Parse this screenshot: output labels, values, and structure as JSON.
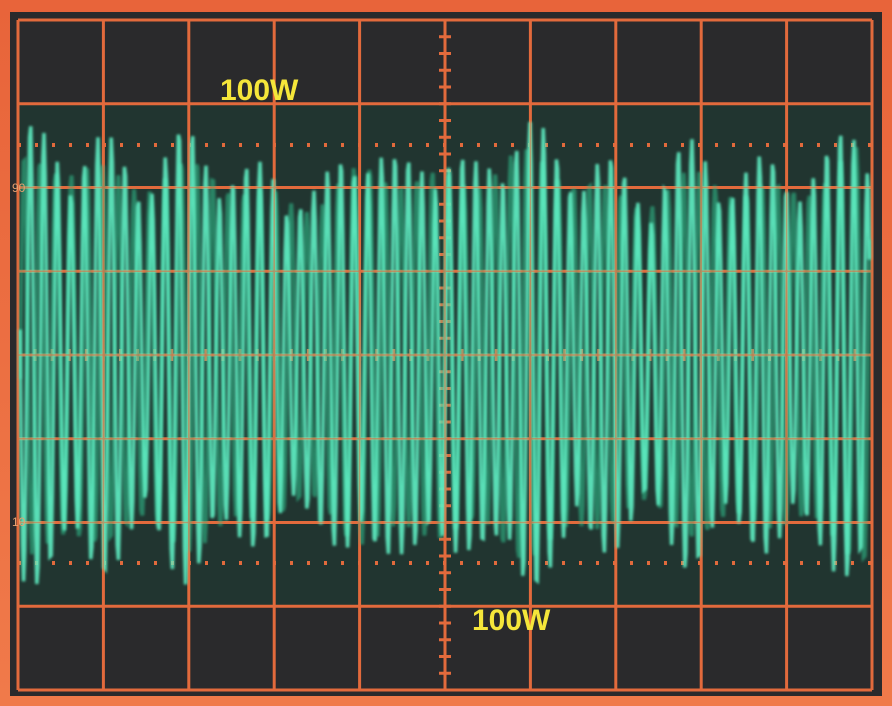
{
  "labels": {
    "top": "100W",
    "bottom": "100W"
  },
  "scale_marks": [
    "90",
    "10"
  ]
}
